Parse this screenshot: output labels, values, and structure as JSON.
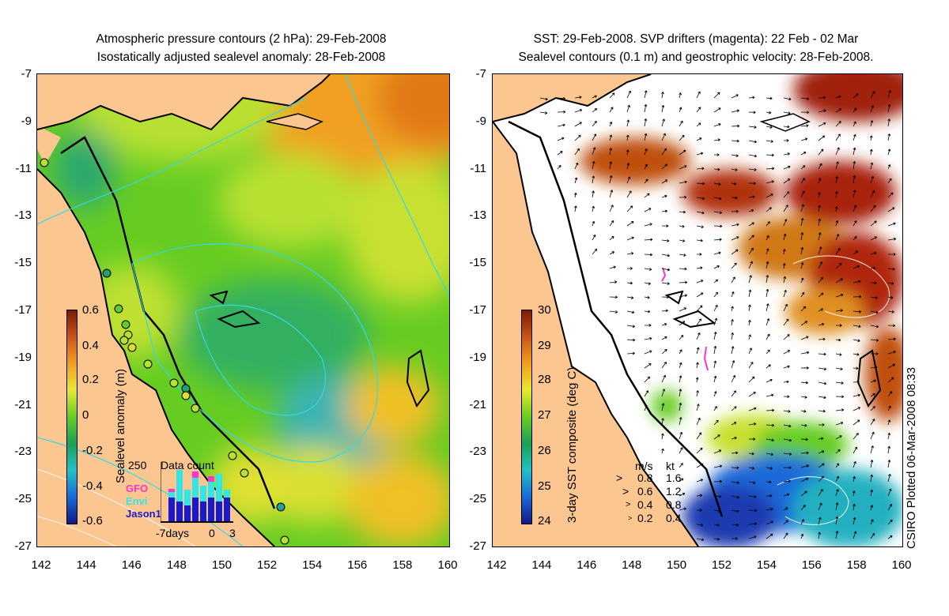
{
  "left_panel": {
    "title_line1": "Atmospheric pressure contours (2 hPa): 29-Feb-2008",
    "title_line2": "Isostatically adjusted sealevel anomaly: 28-Feb-2008",
    "colorbar_label": "Sealevel anomaly (m)",
    "colorbar_ticks": [
      "0.6",
      "0.4",
      "0.2",
      "0",
      "-0.2",
      "-0.4",
      "-0.6"
    ],
    "colorbar_colors": [
      "#7a1a08",
      "#c8561a",
      "#f0a020",
      "#e8e830",
      "#66cc22",
      "#1aa058",
      "#22c0c8",
      "#1a6ad8",
      "#111888"
    ],
    "inset": {
      "title": "Data count",
      "ymax_label": "250",
      "series": [
        {
          "name": "GFO",
          "color": "#ff33cc"
        },
        {
          "name": "Envi",
          "color": "#33e6e6"
        },
        {
          "name": "Jason1",
          "color": "#1a1acc"
        }
      ],
      "x_labels": [
        "-7days",
        "0",
        "3"
      ]
    }
  },
  "right_panel": {
    "title_line1": "SST: 29-Feb-2008. SVP drifters (magenta): 22 Feb - 02 Mar",
    "title_line2": "Sealevel contours (0.1 m) and geostrophic velocity: 28-Feb-2008.",
    "colorbar_label": "3-day SST composite (deg C)",
    "colorbar_ticks": [
      "30",
      "29",
      "28",
      "27",
      "26",
      "25",
      "24"
    ],
    "colorbar_colors": [
      "#7a1a08",
      "#c8561a",
      "#f0a020",
      "#e8e830",
      "#66cc22",
      "#1aa058",
      "#22c0c8",
      "#1a6ad8",
      "#111888"
    ],
    "velocity_legend": {
      "header_ms": "m/s",
      "header_kt": "kt",
      "rows": [
        {
          "ms": "0.8",
          "kt": "1.6"
        },
        {
          "ms": "0.6",
          "kt": "1.2"
        },
        {
          "ms": "0.4",
          "kt": "0.8"
        },
        {
          "ms": "0.2",
          "kt": "0.4"
        }
      ]
    }
  },
  "axes": {
    "lat_ticks": [
      "-7",
      "-9",
      "-11",
      "-13",
      "-15",
      "-17",
      "-19",
      "-21",
      "-23",
      "-25",
      "-27"
    ],
    "lon_ticks": [
      "142",
      "144",
      "146",
      "148",
      "150",
      "152",
      "154",
      "156",
      "158",
      "160"
    ]
  },
  "credit": "CSIRO Plotted 06-Mar-2008 08:33",
  "colors": {
    "land": "#fcc690",
    "sea_green": "#66cc22",
    "coast": "#000000"
  }
}
